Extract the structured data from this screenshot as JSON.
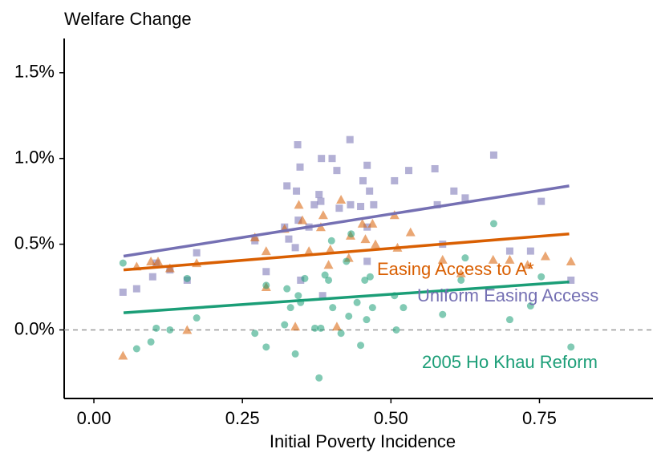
{
  "chart_data": {
    "type": "scatter",
    "title": "Welfare Change",
    "xlabel": "Initial Poverty Incidence",
    "xlim": [
      -0.05,
      0.96
    ],
    "ylim": [
      -0.4,
      1.7
    ],
    "xticks": [
      {
        "value": 0,
        "label": "0.00"
      },
      {
        "value": 0.25,
        "label": "0.25"
      },
      {
        "value": 0.5,
        "label": "0.50"
      },
      {
        "value": 0.75,
        "label": "0.75"
      }
    ],
    "yticks": [
      {
        "value": 0,
        "label": "0.0%"
      },
      {
        "value": 0.5,
        "label": "0.5%"
      },
      {
        "value": 1,
        "label": "1.0%"
      },
      {
        "value": 1.5,
        "label": "1.5%"
      }
    ],
    "hline": 0,
    "series": [
      {
        "name": "Uniform Easing Access",
        "color": "#7570b3",
        "marker": "square",
        "x": [
          0.049,
          0.072,
          0.099,
          0.105,
          0.128,
          0.157,
          0.173,
          0.271,
          0.29,
          0.321,
          0.325,
          0.328,
          0.339,
          0.343,
          0.347,
          0.341,
          0.344,
          0.348,
          0.362,
          0.371,
          0.379,
          0.383,
          0.382,
          0.385,
          0.401,
          0.409,
          0.413,
          0.431,
          0.432,
          0.449,
          0.453,
          0.46,
          0.464,
          0.46,
          0.46,
          0.471,
          0.506,
          0.53,
          0.574,
          0.578,
          0.587,
          0.606,
          0.625,
          0.673,
          0.7,
          0.735,
          0.753,
          0.803
        ],
        "values": [
          0.22,
          0.24,
          0.31,
          0.39,
          0.35,
          0.29,
          0.45,
          0.52,
          0.34,
          0.6,
          0.84,
          0.53,
          0.48,
          1.08,
          0.95,
          0.81,
          0.64,
          0.29,
          0.6,
          0.73,
          0.79,
          1.0,
          0.75,
          0.2,
          1.0,
          0.93,
          0.71,
          1.11,
          0.73,
          0.72,
          0.87,
          0.96,
          0.81,
          0.6,
          0.4,
          0.73,
          0.87,
          0.93,
          0.94,
          0.73,
          0.5,
          0.81,
          0.77,
          1.02,
          0.46,
          0.46,
          0.75,
          0.29
        ],
        "fit": {
          "x": [
            0.05,
            0.8
          ],
          "values": [
            0.43,
            0.84
          ]
        }
      },
      {
        "name": "Easing Access to A*",
        "color": "#d95f02",
        "marker": "triangle",
        "x": [
          0.049,
          0.072,
          0.096,
          0.108,
          0.128,
          0.157,
          0.173,
          0.271,
          0.29,
          0.29,
          0.321,
          0.339,
          0.345,
          0.351,
          0.362,
          0.382,
          0.386,
          0.395,
          0.398,
          0.416,
          0.429,
          0.432,
          0.452,
          0.457,
          0.469,
          0.474,
          0.506,
          0.511,
          0.533,
          0.587,
          0.618,
          0.672,
          0.7,
          0.73,
          0.76,
          0.803,
          0.409
        ],
        "values": [
          -0.15,
          0.37,
          0.4,
          0.4,
          0.36,
          0.0,
          0.39,
          0.54,
          0.46,
          0.25,
          0.59,
          0.02,
          0.73,
          0.64,
          0.46,
          0.6,
          0.67,
          0.38,
          0.47,
          0.76,
          0.42,
          0.55,
          0.62,
          0.53,
          0.62,
          0.5,
          0.67,
          0.48,
          0.57,
          0.41,
          0.33,
          0.41,
          0.41,
          0.38,
          0.43,
          0.4,
          0.02
        ],
        "fit": {
          "x": [
            0.05,
            0.8
          ],
          "values": [
            0.35,
            0.56
          ]
        }
      },
      {
        "name": "2005 Ho Khau Reform",
        "color": "#1b9e77",
        "marker": "circle",
        "x": [
          0.049,
          0.072,
          0.096,
          0.105,
          0.128,
          0.157,
          0.173,
          0.271,
          0.29,
          0.29,
          0.321,
          0.325,
          0.331,
          0.339,
          0.344,
          0.348,
          0.355,
          0.372,
          0.379,
          0.382,
          0.389,
          0.395,
          0.4,
          0.402,
          0.416,
          0.425,
          0.429,
          0.433,
          0.443,
          0.449,
          0.456,
          0.459,
          0.465,
          0.469,
          0.506,
          0.509,
          0.521,
          0.587,
          0.618,
          0.625,
          0.673,
          0.7,
          0.735,
          0.753,
          0.803
        ],
        "values": [
          0.39,
          -0.11,
          -0.07,
          0.01,
          0.0,
          0.3,
          0.07,
          -0.02,
          -0.1,
          0.26,
          0.03,
          0.24,
          0.13,
          -0.14,
          0.2,
          0.16,
          0.3,
          0.01,
          -0.28,
          0.01,
          0.32,
          0.29,
          0.52,
          0.13,
          -0.02,
          0.4,
          0.08,
          0.56,
          0.16,
          -0.09,
          0.29,
          0.06,
          0.31,
          0.13,
          0.2,
          0.0,
          0.13,
          0.09,
          0.29,
          0.42,
          0.62,
          0.06,
          0.14,
          0.31,
          -0.1
        ],
        "fit": {
          "x": [
            0.05,
            0.8
          ],
          "values": [
            0.1,
            0.28
          ]
        }
      }
    ]
  }
}
